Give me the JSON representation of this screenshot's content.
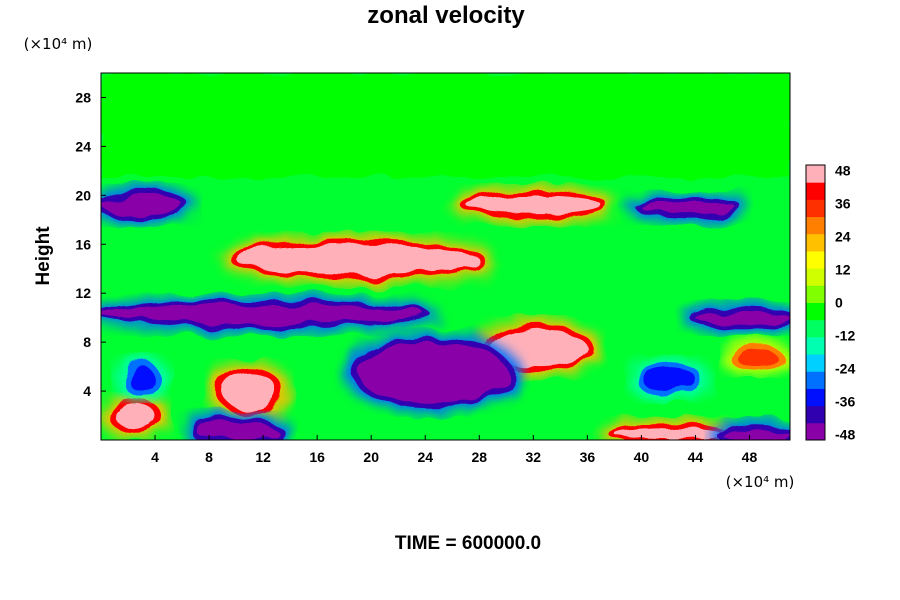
{
  "chart_data": {
    "type": "heatmap",
    "title": "zonal velocity",
    "xlabel": "",
    "ylabel": "Height",
    "x_units": "(×10⁴ m)",
    "y_units": "(×10⁴ m)",
    "xlim": [
      0,
      51
    ],
    "ylim": [
      0,
      30
    ],
    "x_ticks": [
      4,
      8,
      12,
      16,
      20,
      24,
      28,
      32,
      36,
      40,
      44,
      48
    ],
    "y_ticks": [
      4,
      8,
      12,
      16,
      20,
      24,
      28
    ],
    "colorbar": {
      "min": -50,
      "max": 50,
      "ticks": [
        48,
        36,
        24,
        12,
        0,
        -12,
        -24,
        -36,
        -48
      ],
      "colors": [
        "#8a00a8",
        "#3000b0",
        "#0010ff",
        "#0070ff",
        "#00d0ff",
        "#00ffb0",
        "#00ff60",
        "#00ff00",
        "#80ff00",
        "#d0ff00",
        "#ffff00",
        "#ffc000",
        "#ff8000",
        "#ff3000",
        "#ff0000",
        "#ffb0b8"
      ]
    },
    "regions": [
      {
        "kind": "upper-band",
        "x": [
          0,
          51
        ],
        "y": [
          21.5,
          30
        ],
        "value": -2,
        "note": "weak flow, green"
      },
      {
        "kind": "jet",
        "x": [
          27,
          37
        ],
        "y": [
          18.5,
          20
        ],
        "value": 48
      },
      {
        "kind": "jet",
        "x": [
          10,
          28
        ],
        "y": [
          13.5,
          16
        ],
        "value": 48
      },
      {
        "kind": "jet",
        "x": [
          29,
          36
        ],
        "y": [
          6,
          9
        ],
        "value": 48
      },
      {
        "kind": "jet",
        "x": [
          9,
          13
        ],
        "y": [
          2.5,
          5.5
        ],
        "value": 48
      },
      {
        "kind": "jet",
        "x": [
          1,
          4
        ],
        "y": [
          1,
          3
        ],
        "value": 48
      },
      {
        "kind": "jet",
        "x": [
          38,
          46
        ],
        "y": [
          0,
          1
        ],
        "value": 48
      },
      {
        "kind": "jet",
        "x": [
          47,
          50
        ],
        "y": [
          6,
          7.5
        ],
        "value": 36
      },
      {
        "kind": "trough",
        "x": [
          19,
          30
        ],
        "y": [
          3,
          8
        ],
        "value": -48
      },
      {
        "kind": "trough",
        "x": [
          0,
          24
        ],
        "y": [
          9.5,
          11
        ],
        "value": -48
      },
      {
        "kind": "trough",
        "x": [
          44,
          51
        ],
        "y": [
          9.5,
          10.5
        ],
        "value": -48
      },
      {
        "kind": "trough",
        "x": [
          0,
          6
        ],
        "y": [
          18.5,
          20
        ],
        "value": -48
      },
      {
        "kind": "trough",
        "x": [
          40,
          47
        ],
        "y": [
          18.5,
          19.5
        ],
        "value": -48
      },
      {
        "kind": "trough",
        "x": [
          7,
          13
        ],
        "y": [
          0,
          1.5
        ],
        "value": -48
      },
      {
        "kind": "trough",
        "x": [
          46,
          51
        ],
        "y": [
          0,
          0.8
        ],
        "value": -48
      },
      {
        "kind": "trough",
        "x": [
          2,
          4
        ],
        "y": [
          4,
          6
        ],
        "value": -36
      },
      {
        "kind": "trough",
        "x": [
          40,
          44
        ],
        "y": [
          4,
          6
        ],
        "value": -36
      }
    ]
  },
  "footer": {
    "time_label": "TIME = 600000.0"
  }
}
